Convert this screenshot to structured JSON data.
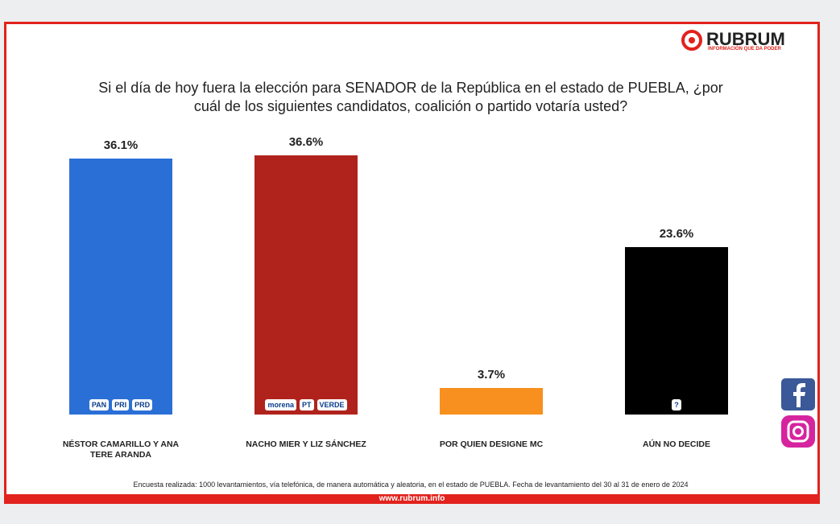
{
  "brand": {
    "name": "RUBRUM",
    "tagline": "INFORMACIÓN QUE DA PODER",
    "url": "www.rubrum.info"
  },
  "chart_data": {
    "type": "bar",
    "title": "Si el día de hoy fuera la elección para SENADOR de la República en el estado de PUEBLA, ¿por cuál de los siguientes candidatos, coalición o partido votaría usted?",
    "categories": [
      "NÉSTOR CAMARILLO Y ANA TERE ARANDA",
      "NACHO MIER Y LIZ SÁNCHEZ",
      "POR QUIEN DESIGNE MC",
      "AÚN NO DECIDE"
    ],
    "values": [
      36.1,
      36.6,
      3.7,
      23.6
    ],
    "value_labels": [
      "36.1%",
      "36.6%",
      "3.7%",
      "23.6%"
    ],
    "colors": [
      "#2a6fd6",
      "#b0231c",
      "#f7901e",
      "#000000"
    ],
    "logos": [
      [
        "PAN",
        "PRI",
        "PRD"
      ],
      [
        "morena",
        "PT",
        "VERDE"
      ],
      [],
      [
        "?"
      ]
    ],
    "note": "Encuesta realizada: 1000 levantamientos, vía telefónica, de manera automática y aleatoria, en el estado de PUEBLA. Fecha de levantamiento del 30 al 31 de enero de 2024"
  }
}
